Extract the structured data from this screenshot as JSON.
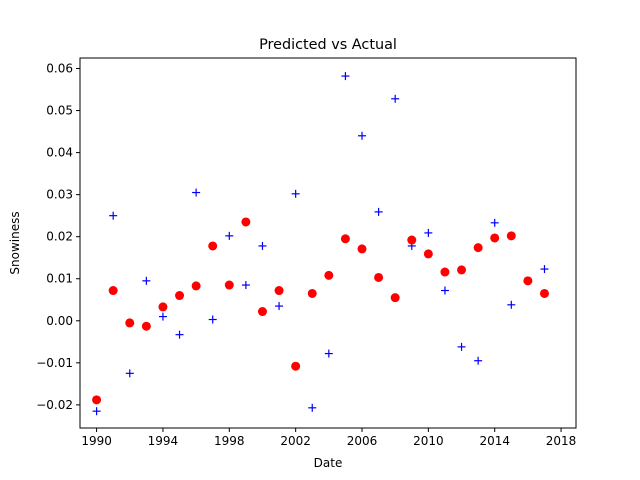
{
  "chart_data": {
    "type": "scatter",
    "title": "Predicted vs Actual",
    "xlabel": "Date",
    "ylabel": "Snowiness",
    "xlim": [
      1989.0,
      2018.9
    ],
    "ylim": [
      -0.0255,
      0.0625
    ],
    "x_ticks": [
      1990,
      1994,
      1998,
      2002,
      2006,
      2010,
      2014,
      2018
    ],
    "x_tick_labels": [
      "1990",
      "1994",
      "1998",
      "2002",
      "2006",
      "2010",
      "2014",
      "2018"
    ],
    "y_ticks": [
      -0.02,
      -0.01,
      0.0,
      0.01,
      0.02,
      0.03,
      0.04,
      0.05,
      0.06
    ],
    "y_tick_labels": [
      "−0.02",
      "−0.01",
      "0.00",
      "0.01",
      "0.02",
      "0.03",
      "0.04",
      "0.05",
      "0.06"
    ],
    "grid": false,
    "series": [
      {
        "marker": "plus",
        "color": "#0000ff",
        "points": [
          [
            1990,
            -0.0215
          ],
          [
            1991,
            0.025
          ],
          [
            1992,
            -0.0125
          ],
          [
            1993,
            0.0095
          ],
          [
            1994,
            0.001
          ],
          [
            1995,
            -0.0033
          ],
          [
            1996,
            0.0305
          ],
          [
            1997,
            0.0003
          ],
          [
            1998,
            0.0202
          ],
          [
            1999,
            0.0085
          ],
          [
            2000,
            0.0178
          ],
          [
            2001,
            0.0035
          ],
          [
            2002,
            0.0302
          ],
          [
            2003,
            -0.0207
          ],
          [
            2004,
            -0.0078
          ],
          [
            2005,
            0.0582
          ],
          [
            2006,
            0.044
          ],
          [
            2007,
            0.0259
          ],
          [
            2008,
            0.0528
          ],
          [
            2009,
            0.0178
          ],
          [
            2010,
            0.0209
          ],
          [
            2011,
            0.0072
          ],
          [
            2012,
            -0.0062
          ],
          [
            2013,
            -0.0095
          ],
          [
            2014,
            0.0233
          ],
          [
            2015,
            0.0038
          ],
          [
            2017,
            0.0123
          ]
        ]
      },
      {
        "marker": "circle",
        "color": "#ff0000",
        "points": [
          [
            1990,
            -0.0188
          ],
          [
            1991,
            0.0072
          ],
          [
            1992,
            -0.0005
          ],
          [
            1993,
            -0.0013
          ],
          [
            1994,
            0.0033
          ],
          [
            1995,
            0.006
          ],
          [
            1996,
            0.0083
          ],
          [
            1997,
            0.0178
          ],
          [
            1998,
            0.0085
          ],
          [
            1999,
            0.0235
          ],
          [
            2000,
            0.0022
          ],
          [
            2001,
            0.0072
          ],
          [
            2002,
            -0.0108
          ],
          [
            2003,
            0.0065
          ],
          [
            2004,
            0.0108
          ],
          [
            2005,
            0.0195
          ],
          [
            2006,
            0.0171
          ],
          [
            2007,
            0.0103
          ],
          [
            2008,
            0.0055
          ],
          [
            2009,
            0.0192
          ],
          [
            2010,
            0.0159
          ],
          [
            2011,
            0.0116
          ],
          [
            2012,
            0.0121
          ],
          [
            2013,
            0.0174
          ],
          [
            2014,
            0.0197
          ],
          [
            2015,
            0.0202
          ],
          [
            2016,
            0.0095
          ],
          [
            2017,
            0.0065
          ]
        ]
      }
    ]
  }
}
